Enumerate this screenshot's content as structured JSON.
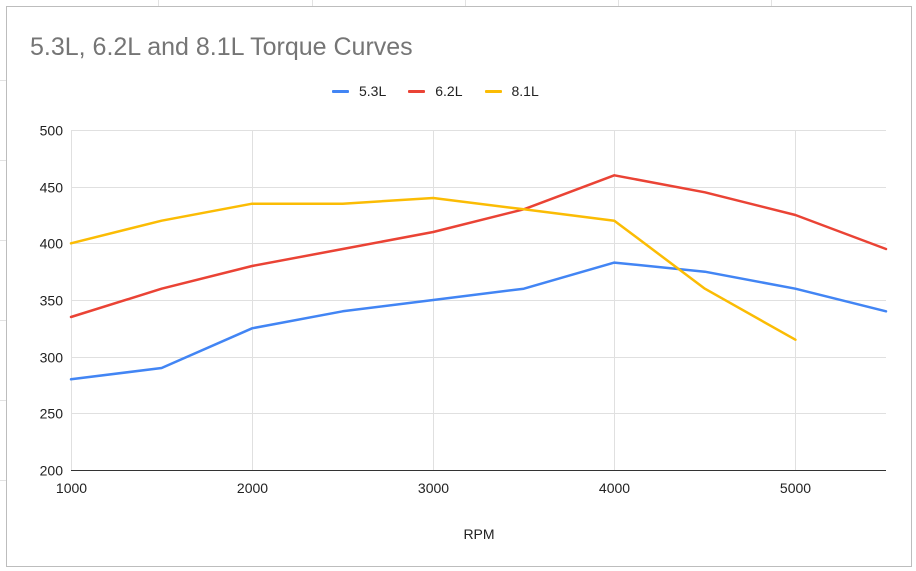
{
  "chart_data": {
    "type": "line",
    "title": "5.3L, 6.2L and 8.1L Torque Curves",
    "xlabel": "RPM",
    "ylabel": "",
    "xlim": [
      1000,
      5500
    ],
    "ylim": [
      200,
      500
    ],
    "x_ticks": [
      "1000",
      "2000",
      "3000",
      "4000",
      "5000"
    ],
    "y_ticks": [
      "200",
      "250",
      "300",
      "350",
      "400",
      "450",
      "500"
    ],
    "grid": true,
    "legend_position": "top-center",
    "series": [
      {
        "name": "5.3L",
        "color": "#4285f4",
        "points": [
          [
            1000,
            280
          ],
          [
            1500,
            290
          ],
          [
            2000,
            325
          ],
          [
            2500,
            340
          ],
          [
            3000,
            350
          ],
          [
            3500,
            360
          ],
          [
            4000,
            383
          ],
          [
            4500,
            375
          ],
          [
            5000,
            360
          ],
          [
            5500,
            340
          ]
        ]
      },
      {
        "name": "6.2L",
        "color": "#ea4335",
        "points": [
          [
            1000,
            335
          ],
          [
            1500,
            360
          ],
          [
            2000,
            380
          ],
          [
            2500,
            395
          ],
          [
            3000,
            410
          ],
          [
            3500,
            430
          ],
          [
            4000,
            460
          ],
          [
            4500,
            445
          ],
          [
            5000,
            425
          ],
          [
            5500,
            395
          ]
        ]
      },
      {
        "name": "8.1L",
        "color": "#fbbc04",
        "points": [
          [
            1000,
            400
          ],
          [
            1500,
            420
          ],
          [
            2000,
            435
          ],
          [
            2500,
            435
          ],
          [
            3000,
            440
          ],
          [
            3500,
            430
          ],
          [
            4000,
            420
          ],
          [
            4500,
            360
          ],
          [
            5000,
            315
          ]
        ]
      }
    ]
  }
}
